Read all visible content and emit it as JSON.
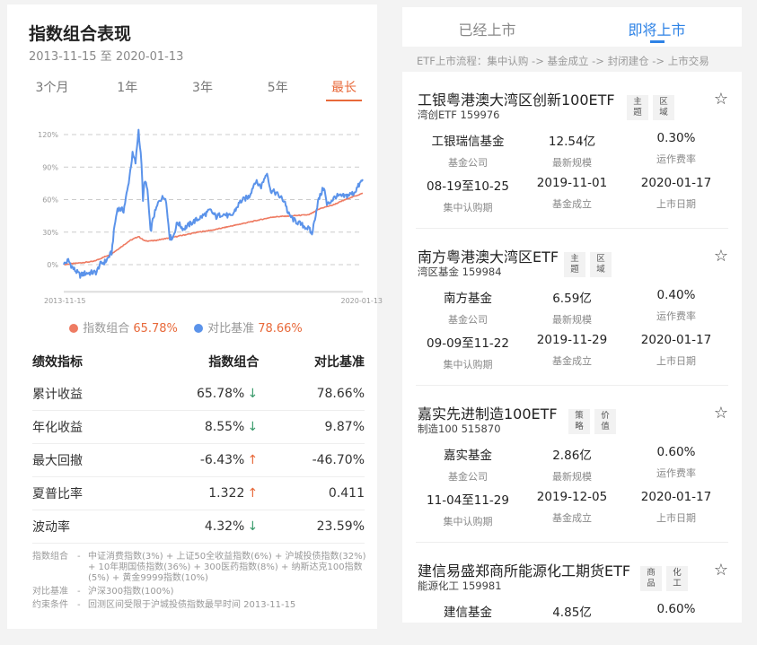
{
  "left": {
    "title": "指数组合表现",
    "range": "2013-11-15 至 2020-01-13",
    "periods": [
      "3个月",
      "1年",
      "3年",
      "5年",
      "最长"
    ],
    "active_period": "最长",
    "legend": [
      {
        "label": "指数组合",
        "value": "65.78%",
        "color": "#ee7b62"
      },
      {
        "label": "对比基准",
        "value": "78.66%",
        "color": "#5b93ea"
      }
    ],
    "table": {
      "headers": [
        "绩效指标",
        "指数组合",
        "对比基准"
      ],
      "rows": [
        {
          "metric": "累计收益",
          "portfolio": "65.78%",
          "arrow": "↓",
          "dir": "dn",
          "benchmark": "78.66%"
        },
        {
          "metric": "年化收益",
          "portfolio": "8.55%",
          "arrow": "↓",
          "dir": "dn",
          "benchmark": "9.87%"
        },
        {
          "metric": "最大回撤",
          "portfolio": "-6.43%",
          "arrow": "↑",
          "dir": "up",
          "benchmark": "-46.70%"
        },
        {
          "metric": "夏普比率",
          "portfolio": "1.322",
          "arrow": "↑",
          "dir": "up",
          "benchmark": "0.411"
        },
        {
          "metric": "波动率",
          "portfolio": "4.32%",
          "arrow": "↓",
          "dir": "dn",
          "benchmark": "23.59%"
        }
      ]
    },
    "notes": [
      {
        "key": "指数组合",
        "sep": "-",
        "text": "中证消费指数(3%) + 上证50全收益指数(6%) + 沪城投债指数(32%) + 10年期国债指数(36%) + 300医药指数(8%) + 纳斯达克100指数(5%) + 黄金9999指数(10%)"
      },
      {
        "key": "对比基准",
        "sep": "-",
        "text": "沪深300指数(100%)"
      },
      {
        "key": "约束条件",
        "sep": "-",
        "text": "回测区间受限于沪城投债指数最早时间 2013-11-15"
      }
    ]
  },
  "chart_data": {
    "type": "line",
    "x_start": "2013-11-15",
    "x_end": "2020-01-13",
    "x_tick_labels": [
      "2013-11-15",
      "2020-01-13"
    ],
    "y_ticks": [
      0,
      30,
      60,
      90,
      120
    ],
    "y_tick_labels": [
      "0%",
      "30%",
      "60%",
      "90%",
      "120%"
    ],
    "ylim": [
      -25,
      130
    ],
    "grid": true,
    "legend": "bottom",
    "series": [
      {
        "name": "指数组合",
        "color": "#ee7b62",
        "points": [
          [
            0,
            0
          ],
          [
            0.1,
            3
          ],
          [
            0.16,
            10
          ],
          [
            0.22,
            22
          ],
          [
            0.25,
            26
          ],
          [
            0.27,
            22
          ],
          [
            0.3,
            22
          ],
          [
            0.36,
            25
          ],
          [
            0.45,
            30
          ],
          [
            0.5,
            32
          ],
          [
            0.6,
            38
          ],
          [
            0.7,
            44
          ],
          [
            0.76,
            45
          ],
          [
            0.82,
            46
          ],
          [
            0.86,
            52
          ],
          [
            0.9,
            55
          ],
          [
            0.95,
            61
          ],
          [
            1,
            65.78
          ]
        ]
      },
      {
        "name": "对比基准",
        "color": "#5b93ea",
        "points": [
          [
            0,
            0
          ],
          [
            0.015,
            4
          ],
          [
            0.03,
            -3
          ],
          [
            0.055,
            -10
          ],
          [
            0.07,
            -8
          ],
          [
            0.11,
            -7
          ],
          [
            0.12,
            0
          ],
          [
            0.14,
            3
          ],
          [
            0.16,
            11
          ],
          [
            0.17,
            36
          ],
          [
            0.18,
            52
          ],
          [
            0.2,
            50
          ],
          [
            0.215,
            72
          ],
          [
            0.23,
            102
          ],
          [
            0.24,
            94
          ],
          [
            0.25,
            124
          ],
          [
            0.26,
            94
          ],
          [
            0.265,
            58
          ],
          [
            0.27,
            78
          ],
          [
            0.28,
            69
          ],
          [
            0.29,
            30
          ],
          [
            0.3,
            44
          ],
          [
            0.32,
            60
          ],
          [
            0.34,
            63
          ],
          [
            0.355,
            25
          ],
          [
            0.365,
            25
          ],
          [
            0.38,
            39
          ],
          [
            0.4,
            33
          ],
          [
            0.43,
            39
          ],
          [
            0.46,
            44
          ],
          [
            0.49,
            50
          ],
          [
            0.51,
            44
          ],
          [
            0.53,
            47
          ],
          [
            0.56,
            44
          ],
          [
            0.59,
            58
          ],
          [
            0.62,
            63
          ],
          [
            0.64,
            77
          ],
          [
            0.66,
            72
          ],
          [
            0.68,
            86
          ],
          [
            0.69,
            69
          ],
          [
            0.71,
            66
          ],
          [
            0.74,
            58
          ],
          [
            0.75,
            47
          ],
          [
            0.77,
            41
          ],
          [
            0.8,
            36
          ],
          [
            0.82,
            33
          ],
          [
            0.83,
            28
          ],
          [
            0.85,
            58
          ],
          [
            0.87,
            72
          ],
          [
            0.88,
            55
          ],
          [
            0.91,
            63
          ],
          [
            0.94,
            63
          ],
          [
            0.97,
            66
          ],
          [
            1,
            78.66
          ]
        ]
      }
    ]
  },
  "right": {
    "tabs": [
      "已经上市",
      "即将上市"
    ],
    "active_tab": "即将上市",
    "flow": "ETF上市流程：集中认购 -> 基金成立 -> 封闭建仓 -> 上市交易",
    "labels": [
      "基金公司",
      "最新规模",
      "运作费率",
      "集中认购期",
      "基金成立",
      "上市日期"
    ],
    "cards": [
      {
        "name": "工银粤港澳大湾区创新100ETF",
        "tags": [
          "主题",
          "区域"
        ],
        "sub": "湾创ETF  159976",
        "company": "工银瑞信基金",
        "size": "12.54亿",
        "fee": "0.30%",
        "subscribe": "08-19至10-25",
        "established": "2019-11-01",
        "listing": "2020-01-17"
      },
      {
        "name": "南方粤港澳大湾区ETF",
        "tags": [
          "主题",
          "区域"
        ],
        "sub": "湾区基金  159984",
        "company": "南方基金",
        "size": "6.59亿",
        "fee": "0.40%",
        "subscribe": "09-09至11-22",
        "established": "2019-11-29",
        "listing": "2020-01-17"
      },
      {
        "name": "嘉实先进制造100ETF",
        "tags": [
          "策略",
          "价值"
        ],
        "sub": "制造100  515870",
        "company": "嘉实基金",
        "size": "2.86亿",
        "fee": "0.60%",
        "subscribe": "11-04至11-29",
        "established": "2019-12-05",
        "listing": "2020-01-17"
      },
      {
        "name": "建信易盛郑商所能源化工期货ETF",
        "tags": [
          "商品",
          "化工"
        ],
        "sub": "能源化工  159981",
        "company": "建信基金",
        "size": "4.85亿",
        "fee": "0.60%"
      }
    ]
  }
}
